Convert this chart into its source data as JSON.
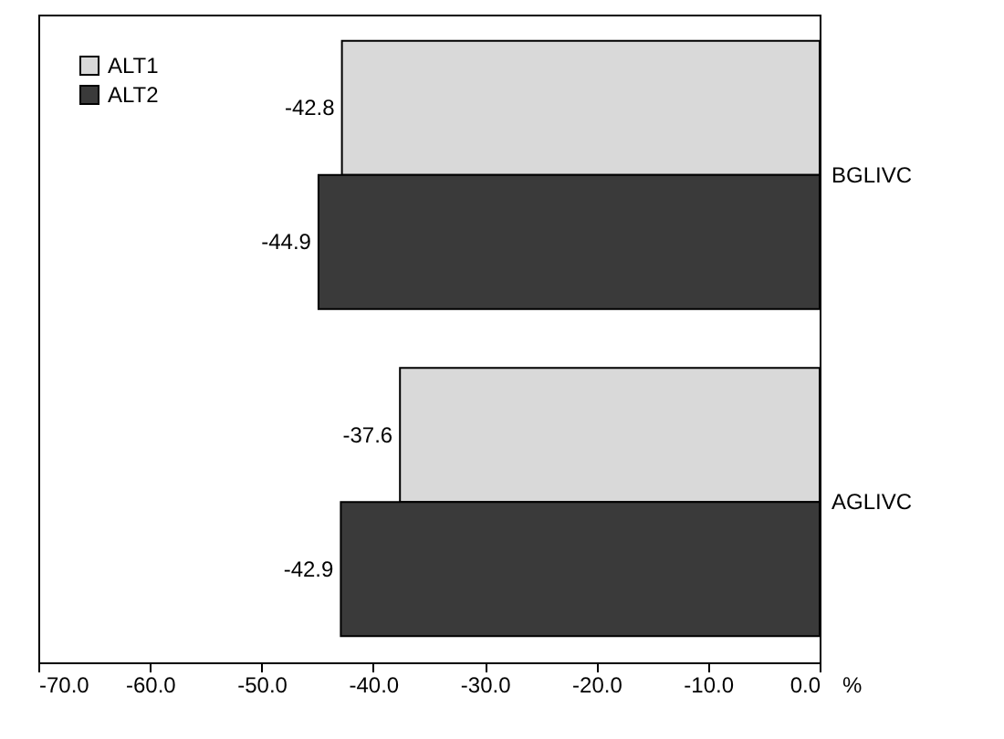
{
  "chart_data": {
    "type": "bar",
    "orientation": "horizontal",
    "xlabel": "%",
    "categories": [
      "BGLIVC",
      "AGLIVC"
    ],
    "series": [
      {
        "name": "ALT1",
        "color": "#d9d9d9",
        "values": [
          -42.8,
          -37.6
        ]
      },
      {
        "name": "ALT2",
        "color": "#3a3a3a",
        "values": [
          -44.9,
          -42.9
        ]
      }
    ],
    "xlim": [
      -70,
      0
    ],
    "xticks": [
      {
        "value": -70,
        "label": "-70.0"
      },
      {
        "value": -60,
        "label": "-60.0"
      },
      {
        "value": -50,
        "label": "-50.0"
      },
      {
        "value": -40,
        "label": "-40.0"
      },
      {
        "value": -30,
        "label": "-30.0"
      },
      {
        "value": -20,
        "label": "-20.0"
      },
      {
        "value": -10,
        "label": "-10.0"
      },
      {
        "value": 0,
        "label": "0.0"
      }
    ],
    "data_labels": true,
    "legend": "top left",
    "grid": false
  }
}
